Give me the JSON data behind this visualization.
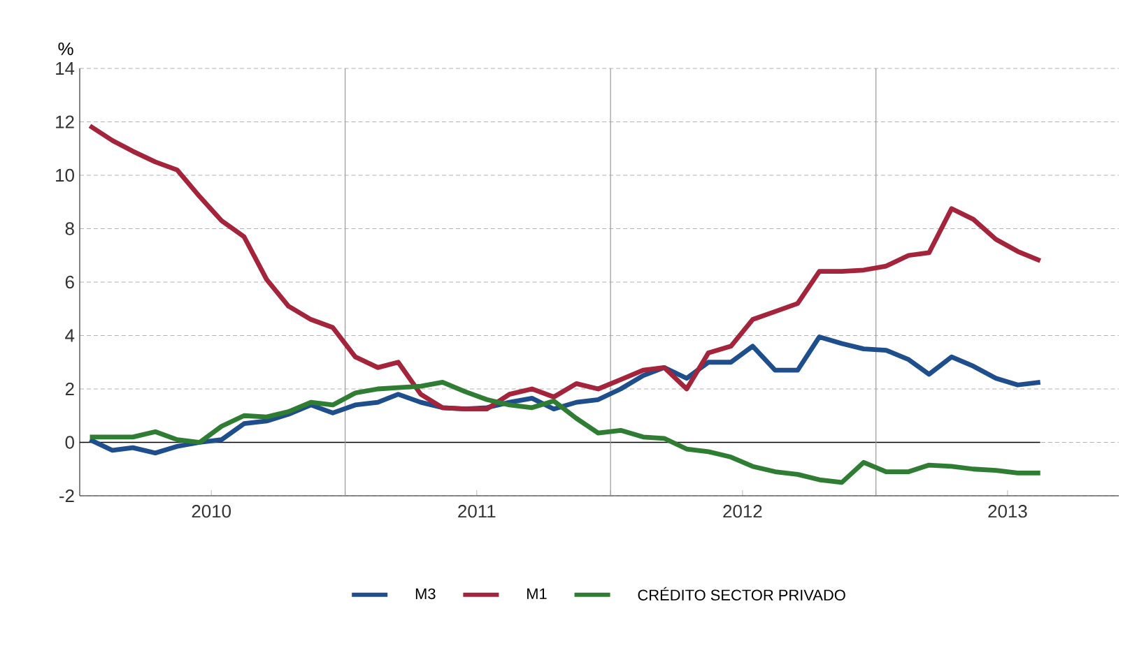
{
  "chart_data": {
    "type": "line",
    "ylabel": "%",
    "x": [
      "2010-01-15",
      "2010-02-15",
      "2010-03-15",
      "2010-04-15",
      "2010-05-15",
      "2010-06-15",
      "2010-07-15",
      "2010-08-15",
      "2010-09-15",
      "2010-10-15",
      "2010-11-15",
      "2010-12-15",
      "2011-01-15",
      "2011-02-15",
      "2011-03-15",
      "2011-04-15",
      "2011-05-15",
      "2011-06-15",
      "2011-07-15",
      "2011-08-15",
      "2011-09-15",
      "2011-10-15",
      "2011-11-15",
      "2011-12-15",
      "2012-01-15",
      "2012-02-15",
      "2012-03-15",
      "2012-04-15",
      "2012-05-15",
      "2012-06-15",
      "2012-07-15",
      "2012-08-15",
      "2012-09-15",
      "2012-10-15",
      "2012-11-15",
      "2012-12-15",
      "2013-01-15",
      "2013-02-15",
      "2013-03-15",
      "2013-04-15",
      "2013-05-15",
      "2013-06-15",
      "2013-07-15",
      "2013-08-15"
    ],
    "series": [
      {
        "name": "M3",
        "color": "#1f4e8c",
        "values": [
          0.1,
          -0.3,
          -0.2,
          -0.4,
          -0.15,
          0.0,
          0.1,
          0.7,
          0.8,
          1.05,
          1.4,
          1.1,
          1.4,
          1.5,
          1.8,
          1.5,
          1.3,
          1.25,
          1.3,
          1.5,
          1.65,
          1.25,
          1.5,
          1.6,
          2.0,
          2.5,
          2.8,
          2.4,
          3.0,
          3.0,
          3.6,
          2.7,
          2.7,
          3.95,
          3.7,
          3.5,
          3.45,
          3.1,
          2.55,
          3.2,
          2.85,
          2.4,
          2.15,
          2.25
        ]
      },
      {
        "name": "M1",
        "color": "#a3243b",
        "values": [
          11.85,
          11.3,
          10.9,
          10.5,
          10.2,
          9.2,
          8.3,
          7.7,
          6.1,
          5.1,
          4.6,
          4.3,
          3.2,
          2.8,
          3.0,
          1.8,
          1.3,
          1.25,
          1.25,
          1.8,
          2.0,
          1.7,
          2.2,
          2.0,
          2.35,
          2.7,
          2.8,
          2.0,
          3.35,
          3.6,
          4.6,
          4.9,
          5.2,
          6.4,
          6.4,
          6.45,
          6.6,
          7.0,
          7.1,
          8.75,
          8.35,
          7.6,
          7.15,
          6.8
        ]
      },
      {
        "name": "CRÉDITO SECTOR PRIVADO",
        "color": "#2e7d32",
        "values": [
          0.2,
          0.2,
          0.2,
          0.4,
          0.1,
          0.0,
          0.6,
          1.0,
          0.95,
          1.15,
          1.5,
          1.4,
          1.85,
          2.0,
          2.05,
          2.1,
          2.25,
          1.9,
          1.6,
          1.4,
          1.3,
          1.55,
          0.9,
          0.35,
          0.45,
          0.2,
          0.15,
          -0.25,
          -0.35,
          -0.55,
          -0.9,
          -1.1,
          -1.2,
          -1.4,
          -1.5,
          -0.75,
          -1.1,
          -1.1,
          -0.85,
          -0.9,
          -1.0,
          -1.05,
          -1.15,
          -1.15
        ]
      }
    ],
    "xlim": [
      "2010-01-01",
      "2013-12-01"
    ],
    "xticks": [
      {
        "value": "2010-07-01",
        "label": "2010"
      },
      {
        "value": "2011-01-01",
        "label": null
      },
      {
        "value": "2011-07-01",
        "label": "2011"
      },
      {
        "value": "2012-01-01",
        "label": null
      },
      {
        "value": "2012-07-01",
        "label": "2012"
      },
      {
        "value": "2013-01-01",
        "label": null
      },
      {
        "value": "2013-07-01",
        "label": "2013"
      }
    ],
    "ylim": [
      -2,
      14
    ],
    "yticks": [
      -2,
      0,
      2,
      4,
      6,
      8,
      10,
      12,
      14
    ],
    "ref_lines": [
      {
        "axis": "y",
        "value": 0,
        "color": "#000000"
      },
      {
        "axis": "x",
        "value": "2011-01-01",
        "color": "#999999"
      },
      {
        "axis": "x",
        "value": "2012-01-01",
        "color": "#999999"
      },
      {
        "axis": "x",
        "value": "2013-01-01",
        "color": "#999999"
      }
    ],
    "grid": "y",
    "legend": "bottom",
    "line_style": "solid",
    "marker": "none"
  }
}
